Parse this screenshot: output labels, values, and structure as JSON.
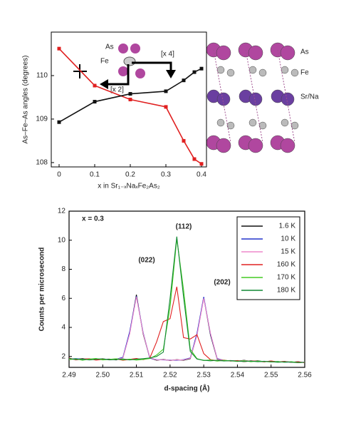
{
  "chart_data": [
    {
      "type": "line",
      "marker": "square",
      "x_label": "x in Sr₁₋ₓNaₓFe₂As₂",
      "y_label": "As–Fe–As angles (degrees)",
      "x": [
        0,
        0.1,
        0.2,
        0.3,
        0.35,
        0.38,
        0.4
      ],
      "series": [
        {
          "color": "#e02020",
          "values": [
            110.62,
            109.77,
            109.45,
            109.28,
            108.5,
            108.08,
            107.97
          ]
        },
        {
          "color": "#111111",
          "values": [
            108.93,
            109.4,
            109.58,
            109.64,
            109.89,
            110.08,
            110.16
          ]
        }
      ],
      "xlim": [
        -0.022,
        0.414
      ],
      "ylim": [
        107.9,
        111.0
      ],
      "xticks": [
        0,
        0.1,
        0.2,
        0.3,
        0.4
      ],
      "yticks": [
        108,
        109,
        110
      ],
      "grid": false,
      "annotations": [
        "As",
        "Fe",
        "[x 2]",
        "[x 4]"
      ]
    },
    {
      "type": "line",
      "x_label": "d-spacing (Å)",
      "y_label": "Counts per microsecond",
      "x": [
        2.49,
        2.492,
        2.494,
        2.496,
        2.498,
        2.5,
        2.502,
        2.504,
        2.506,
        2.508,
        2.51,
        2.512,
        2.514,
        2.516,
        2.518,
        2.52,
        2.522,
        2.524,
        2.526,
        2.528,
        2.53,
        2.532,
        2.534,
        2.536,
        2.538,
        2.54,
        2.542,
        2.544,
        2.546,
        2.548,
        2.55,
        2.552,
        2.554,
        2.556,
        2.558,
        2.56
      ],
      "series": [
        {
          "name": "1.6 K",
          "color": "#111111",
          "values": [
            1.85,
            1.8,
            1.86,
            1.78,
            1.83,
            1.8,
            1.82,
            1.76,
            1.92,
            3.6,
            6.25,
            3.55,
            1.9,
            1.74,
            1.8,
            1.72,
            1.78,
            1.74,
            1.85,
            3.5,
            6.05,
            3.48,
            1.82,
            1.7,
            1.72,
            1.68,
            1.74,
            1.66,
            1.7,
            1.64,
            1.68,
            1.62,
            1.66,
            1.6,
            1.64,
            1.58
          ]
        },
        {
          "name": "10 K",
          "color": "#2233cc",
          "values": [
            1.8,
            1.86,
            1.79,
            1.84,
            1.77,
            1.83,
            1.78,
            1.81,
            1.95,
            3.7,
            6.15,
            3.65,
            1.88,
            1.78,
            1.76,
            1.75,
            1.74,
            1.78,
            1.9,
            3.6,
            6.1,
            3.55,
            1.86,
            1.72,
            1.69,
            1.7,
            1.66,
            1.7,
            1.65,
            1.67,
            1.63,
            1.66,
            1.6,
            1.62,
            1.59,
            1.6
          ]
        },
        {
          "name": "15 K",
          "color": "#ee88cc",
          "values": [
            1.83,
            1.78,
            1.84,
            1.8,
            1.79,
            1.85,
            1.76,
            1.8,
            1.9,
            3.55,
            6.1,
            3.6,
            1.93,
            1.76,
            1.78,
            1.73,
            1.77,
            1.76,
            1.88,
            3.45,
            6.0,
            3.6,
            1.84,
            1.71,
            1.7,
            1.67,
            1.72,
            1.68,
            1.66,
            1.65,
            1.66,
            1.61,
            1.63,
            1.62,
            1.6,
            1.61
          ]
        },
        {
          "name": "160 K",
          "color": "#e02020",
          "values": [
            1.9,
            1.76,
            1.82,
            1.84,
            1.75,
            1.8,
            1.79,
            1.83,
            1.74,
            1.8,
            1.86,
            1.78,
            1.9,
            3.0,
            4.4,
            4.6,
            6.8,
            3.3,
            3.2,
            3.5,
            2.2,
            1.78,
            1.7,
            1.75,
            1.68,
            1.72,
            1.64,
            1.7,
            1.67,
            1.63,
            1.69,
            1.62,
            1.65,
            1.6,
            1.63,
            1.57
          ]
        },
        {
          "name": "170 K",
          "color": "#44cc22",
          "values": [
            1.78,
            1.84,
            1.74,
            1.82,
            1.86,
            1.76,
            1.8,
            1.84,
            1.77,
            1.82,
            1.75,
            1.8,
            1.86,
            2.1,
            2.5,
            5.4,
            10.1,
            6.6,
            2.5,
            1.85,
            1.72,
            1.76,
            1.68,
            1.73,
            1.7,
            1.66,
            1.71,
            1.64,
            1.68,
            1.66,
            1.62,
            1.65,
            1.6,
            1.64,
            1.58,
            1.6
          ]
        },
        {
          "name": "180 K",
          "color": "#118833",
          "values": [
            1.86,
            1.79,
            1.83,
            1.76,
            1.81,
            1.84,
            1.77,
            1.79,
            1.83,
            1.76,
            1.81,
            1.85,
            1.9,
            2.0,
            2.3,
            6.0,
            10.25,
            6.1,
            2.35,
            1.82,
            1.74,
            1.7,
            1.74,
            1.69,
            1.71,
            1.68,
            1.65,
            1.69,
            1.64,
            1.66,
            1.64,
            1.6,
            1.63,
            1.61,
            1.57,
            1.6
          ]
        }
      ],
      "xlim": [
        2.49,
        2.56
      ],
      "ylim": [
        1.25,
        12
      ],
      "xticks": [
        2.49,
        {
          "value": 2.5,
          "label": "2.50"
        },
        2.51,
        2.52,
        2.53,
        2.54,
        2.55,
        2.56
      ],
      "yticks": [
        2,
        4,
        6,
        8,
        10,
        12
      ],
      "grid": false,
      "legend": "upper right",
      "annotations": [
        "x = 0.3",
        "(022)",
        "(112)",
        "(202)"
      ]
    }
  ],
  "structure": {
    "labels": [
      "As",
      "Fe",
      "Sr/Na"
    ]
  }
}
